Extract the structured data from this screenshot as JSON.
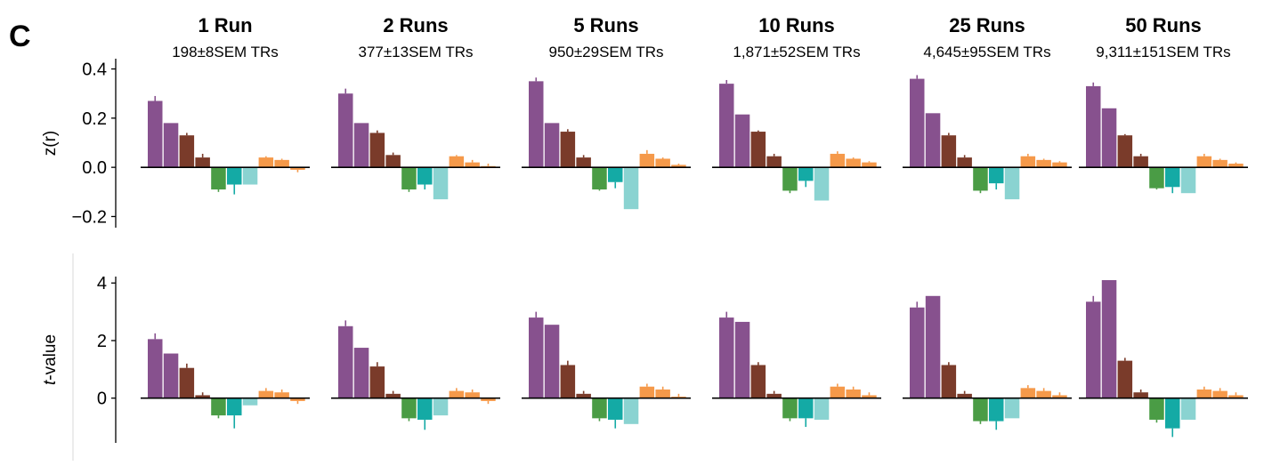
{
  "panel_label": "C",
  "colors": [
    "#87518e",
    "#87518e",
    "#7a3b2a",
    "#7a3b2a",
    "#4a9c45",
    "#14aaa5",
    "#8ad3d1",
    "#f5994a",
    "#f5994a",
    "#f5994a"
  ],
  "chart_data": {
    "type": "bar",
    "grid": false,
    "legend": "none",
    "panels": [
      {
        "title": "1 Run",
        "subtitle": "198±8SEM TRs"
      },
      {
        "title": "2 Runs",
        "subtitle": "377±13SEM TRs"
      },
      {
        "title": "5 Runs",
        "subtitle": "950±29SEM TRs"
      },
      {
        "title": "10 Runs",
        "subtitle": "1,871±52SEM TRs"
      },
      {
        "title": "25 Runs",
        "subtitle": "4,645±95SEM TRs"
      },
      {
        "title": "50 Runs",
        "subtitle": "9,311±151SEM TRs"
      }
    ],
    "rows": [
      {
        "ylabel": "z(r)",
        "ylim": [
          -0.22,
          0.42
        ],
        "yticks": [
          {
            "v": 0.4,
            "label": "0.4"
          },
          {
            "v": 0.2,
            "label": "0.2"
          },
          {
            "v": 0.0,
            "label": "0.0"
          },
          {
            "v": -0.2,
            "label": "−0.2"
          }
        ],
        "values": [
          [
            0.27,
            0.18,
            0.13,
            0.04,
            -0.09,
            -0.07,
            -0.07,
            0.04,
            0.03,
            -0.01
          ],
          [
            0.3,
            0.18,
            0.14,
            0.05,
            -0.09,
            -0.07,
            -0.13,
            0.045,
            0.02,
            0.005
          ],
          [
            0.35,
            0.18,
            0.145,
            0.04,
            -0.09,
            -0.06,
            -0.17,
            0.055,
            0.035,
            0.01
          ],
          [
            0.34,
            0.215,
            0.145,
            0.045,
            -0.095,
            -0.055,
            -0.135,
            0.055,
            0.035,
            0.02
          ],
          [
            0.36,
            0.22,
            0.13,
            0.04,
            -0.095,
            -0.065,
            -0.13,
            0.045,
            0.03,
            0.02
          ],
          [
            0.33,
            0.24,
            0.13,
            0.045,
            -0.085,
            -0.08,
            -0.105,
            0.045,
            0.03,
            0.015
          ]
        ],
        "errors": [
          [
            0.02,
            0,
            0.01,
            0.015,
            0.01,
            0.04,
            0,
            0.005,
            0.005,
            0.01
          ],
          [
            0.02,
            0,
            0.01,
            0.01,
            0.01,
            0.02,
            0,
            0.005,
            0.01,
            0.01
          ],
          [
            0.015,
            0,
            0.01,
            0.01,
            0.005,
            0.025,
            0,
            0.015,
            0.005,
            0.005
          ],
          [
            0.015,
            0,
            0.005,
            0.01,
            0.01,
            0.025,
            0,
            0.01,
            0.005,
            0.005
          ],
          [
            0.015,
            0,
            0.01,
            0.01,
            0.01,
            0.025,
            0,
            0.01,
            0.005,
            0.005
          ],
          [
            0.015,
            0,
            0.005,
            0.01,
            0.005,
            0.025,
            0,
            0.01,
            0.005,
            0.005
          ]
        ]
      },
      {
        "ylabel": "t-value",
        "ylabel_italic_part": "t",
        "ylabel_rest": "-value",
        "ylim": [
          -1.4,
          4.1
        ],
        "yticks": [
          {
            "v": 4,
            "label": "4"
          },
          {
            "v": 2,
            "label": "2"
          },
          {
            "v": 0,
            "label": "0"
          }
        ],
        "values": [
          [
            2.05,
            1.55,
            1.05,
            0.1,
            -0.6,
            -0.6,
            -0.25,
            0.25,
            0.2,
            -0.1
          ],
          [
            2.5,
            1.75,
            1.1,
            0.15,
            -0.7,
            -0.75,
            -0.6,
            0.25,
            0.2,
            -0.1
          ],
          [
            2.8,
            2.55,
            1.15,
            0.15,
            -0.7,
            -0.75,
            -0.9,
            0.4,
            0.3,
            0.05
          ],
          [
            2.8,
            2.65,
            1.15,
            0.15,
            -0.7,
            -0.7,
            -0.75,
            0.4,
            0.3,
            0.1
          ],
          [
            3.15,
            3.55,
            1.15,
            0.15,
            -0.8,
            -0.8,
            -0.7,
            0.35,
            0.25,
            0.1
          ],
          [
            3.35,
            4.1,
            1.3,
            0.2,
            -0.75,
            -1.05,
            -0.75,
            0.3,
            0.25,
            0.1
          ]
        ],
        "errors": [
          [
            0.2,
            0,
            0.15,
            0.1,
            0.1,
            0.45,
            0,
            0.1,
            0.1,
            0.1
          ],
          [
            0.2,
            0,
            0.15,
            0.1,
            0.1,
            0.35,
            0,
            0.1,
            0.1,
            0.1
          ],
          [
            0.2,
            0,
            0.15,
            0.1,
            0.1,
            0.3,
            0,
            0.1,
            0.1,
            0.1
          ],
          [
            0.2,
            0,
            0.1,
            0.1,
            0.1,
            0.3,
            0,
            0.1,
            0.1,
            0.1
          ],
          [
            0.2,
            0,
            0.1,
            0.1,
            0.1,
            0.3,
            0,
            0.1,
            0.1,
            0.1
          ],
          [
            0.2,
            0,
            0.1,
            0.1,
            0.1,
            0.3,
            0,
            0.1,
            0.1,
            0.1
          ]
        ]
      }
    ]
  }
}
